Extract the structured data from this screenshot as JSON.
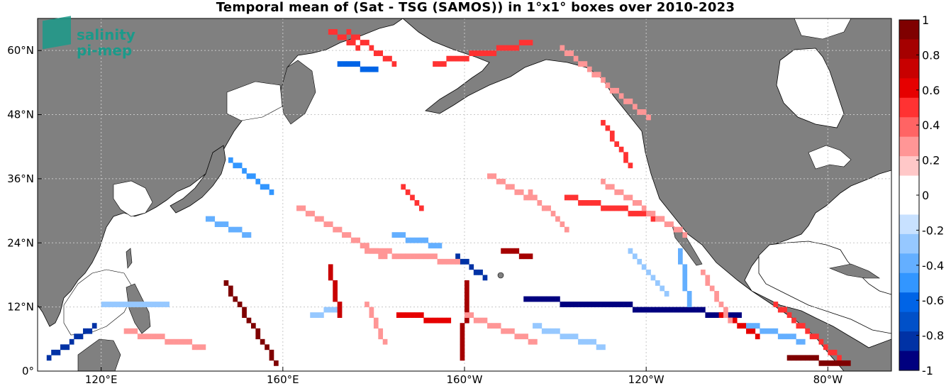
{
  "title": "Temporal mean of (Sat - TSG (SAMOS)) in 1°x1° boxes over 2010-2023",
  "logo": {
    "line1": "salinity",
    "line2": "pi-mep"
  },
  "colors": {
    "land": "#808080",
    "ocean": "#ffffff",
    "grid": "#c8c8c8",
    "coast": "#000000",
    "logo": "#1b9a8a"
  },
  "x_axis": {
    "ticks": [
      {
        "label": "120°E",
        "value": 120
      },
      {
        "label": "160°E",
        "value": 160
      },
      {
        "label": "160°W",
        "value": 200
      },
      {
        "label": "120°W",
        "value": 240
      },
      {
        "label": "80°W",
        "value": 280
      }
    ]
  },
  "y_axis": {
    "ticks": [
      {
        "label": "0°",
        "value": 0
      },
      {
        "label": "12°N",
        "value": 12
      },
      {
        "label": "24°N",
        "value": 24
      },
      {
        "label": "36°N",
        "value": 36
      },
      {
        "label": "48°N",
        "value": 48
      },
      {
        "label": "60°N",
        "value": 60
      }
    ]
  },
  "colorbar": {
    "min": -1,
    "max": 1,
    "labels": [
      "1",
      "0.8",
      "0.6",
      "0.4",
      "0.2",
      "0",
      "-0.2",
      "-0.4",
      "-0.6",
      "-0.8",
      "-1"
    ],
    "colors": [
      "#7f0000",
      "#a50000",
      "#c80000",
      "#e60000",
      "#ff3232",
      "#ff6464",
      "#ff9696",
      "#ffc8c8",
      "#ffffff",
      "#ffffff",
      "#c8e1ff",
      "#96c8ff",
      "#64afff",
      "#3296ff",
      "#0064e6",
      "#0050c8",
      "#0032a5",
      "#00007f"
    ]
  },
  "chart_data": {
    "type": "heatmap",
    "title": "Temporal mean of (Sat - TSG (SAMOS)) in 1°x1° boxes over 2010-2023",
    "x_range": [
      106,
      294
    ],
    "y_range": [
      0,
      66
    ],
    "value_range": [
      -1,
      1
    ],
    "tracks": [
      {
        "from": [
          147,
          16
        ],
        "to": [
          158,
          1
        ],
        "value": 0.95
      },
      {
        "from": [
          200,
          16
        ],
        "to": [
          199,
          2
        ],
        "value": 0.85
      },
      {
        "from": [
          213,
          13
        ],
        "to": [
          260,
          10
        ],
        "value": -0.95
      },
      {
        "from": [
          108,
          2
        ],
        "to": [
          118,
          8
        ],
        "value": -0.8
      },
      {
        "from": [
          184,
          25
        ],
        "to": [
          194,
          23
        ],
        "value": -0.4
      },
      {
        "from": [
          148,
          39
        ],
        "to": [
          157,
          33
        ],
        "value": -0.45
      },
      {
        "from": [
          143,
          28
        ],
        "to": [
          152,
          25
        ],
        "value": -0.4
      },
      {
        "from": [
          174,
          63
        ],
        "to": [
          184,
          57
        ],
        "value": 0.5
      },
      {
        "from": [
          170,
          63
        ],
        "to": [
          176,
          60
        ],
        "value": 0.55
      },
      {
        "from": [
          193,
          57
        ],
        "to": [
          214,
          61
        ],
        "value": 0.5
      },
      {
        "from": [
          221,
          60
        ],
        "to": [
          240,
          47
        ],
        "value": 0.3
      },
      {
        "from": [
          230,
          46
        ],
        "to": [
          236,
          38
        ],
        "value": 0.45
      },
      {
        "from": [
          222,
          32
        ],
        "to": [
          243,
          28
        ],
        "value": 0.45
      },
      {
        "from": [
          236,
          22
        ],
        "to": [
          244,
          14
        ],
        "value": -0.3
      },
      {
        "from": [
          247,
          22
        ],
        "to": [
          249,
          12
        ],
        "value": -0.35
      },
      {
        "from": [
          256,
          10
        ],
        "to": [
          264,
          6
        ],
        "value": 0.6
      },
      {
        "from": [
          268,
          12
        ],
        "to": [
          282,
          2
        ],
        "value": 0.55
      },
      {
        "from": [
          271,
          2
        ],
        "to": [
          284,
          1
        ],
        "value": 0.9
      },
      {
        "from": [
          208,
          22
        ],
        "to": [
          214,
          21
        ],
        "value": 0.8
      },
      {
        "from": [
          166,
          10
        ],
        "to": [
          172,
          11
        ],
        "value": -0.3
      },
      {
        "from": [
          170,
          19
        ],
        "to": [
          172,
          10
        ],
        "value": 0.7
      },
      {
        "from": [
          178,
          12
        ],
        "to": [
          182,
          5
        ],
        "value": 0.3
      },
      {
        "from": [
          186,
          34
        ],
        "to": [
          190,
          30
        ],
        "value": 0.45
      },
      {
        "from": [
          120,
          12
        ],
        "to": [
          134,
          12
        ],
        "value": -0.3
      },
      {
        "from": [
          125,
          7
        ],
        "to": [
          142,
          4
        ],
        "value": 0.25
      },
      {
        "from": [
          214,
          33
        ],
        "to": [
          222,
          26
        ],
        "value": 0.3
      },
      {
        "from": [
          205,
          36
        ],
        "to": [
          214,
          32
        ],
        "value": 0.25
      },
      {
        "from": [
          252,
          18
        ],
        "to": [
          258,
          9
        ],
        "value": 0.3
      },
      {
        "from": [
          262,
          8
        ],
        "to": [
          274,
          5
        ],
        "value": -0.35
      },
      {
        "from": [
          198,
          21
        ],
        "to": [
          204,
          17
        ],
        "value": -0.8
      },
      {
        "from": [
          185,
          10
        ],
        "to": [
          196,
          9
        ],
        "value": 0.6
      },
      {
        "from": [
          178,
          22
        ],
        "to": [
          198,
          20
        ],
        "value": 0.25
      },
      {
        "from": [
          200,
          10
        ],
        "to": [
          215,
          5
        ],
        "value": 0.25
      },
      {
        "from": [
          215,
          8
        ],
        "to": [
          230,
          4
        ],
        "value": -0.25
      },
      {
        "from": [
          230,
          35
        ],
        "to": [
          248,
          25
        ],
        "value": 0.25
      },
      {
        "from": [
          163,
          30
        ],
        "to": [
          182,
          21
        ],
        "value": 0.25
      },
      {
        "from": [
          172,
          57
        ],
        "to": [
          180,
          56
        ],
        "value": -0.6
      }
    ]
  }
}
